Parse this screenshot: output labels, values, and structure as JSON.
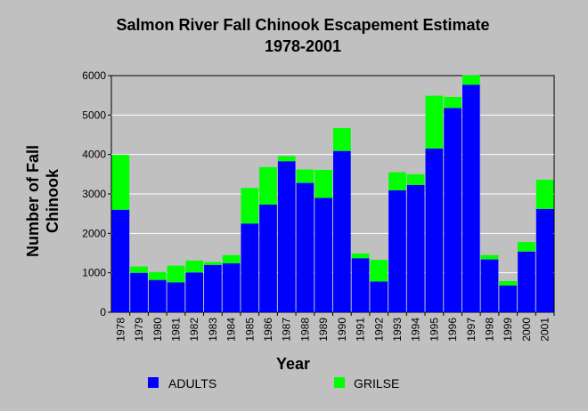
{
  "chart_data": {
    "type": "bar",
    "stacked": true,
    "title_line1": "Salmon River Fall Chinook Escapement Estimate",
    "title_line2": "1978-2001",
    "xlabel": "Year",
    "ylabel_line1": "Number of Fall",
    "ylabel_line2": "Chinook",
    "ylim": [
      0,
      6000
    ],
    "yticks": [
      0,
      1000,
      2000,
      3000,
      4000,
      5000,
      6000
    ],
    "grid": "horizontal",
    "legend_position": "bottom",
    "categories": [
      "1978",
      "1979",
      "1980",
      "1981",
      "1982",
      "1983",
      "1984",
      "1985",
      "1986",
      "1987",
      "1988",
      "1989",
      "1990",
      "1991",
      "1992",
      "1993",
      "1994",
      "1995",
      "1996",
      "1997",
      "1998",
      "1999",
      "2000",
      "2001"
    ],
    "series": [
      {
        "name": "ADULTS",
        "color": "#0000ff",
        "values": [
          2600,
          1000,
          820,
          760,
          1010,
          1200,
          1240,
          2250,
          2730,
          3830,
          3280,
          2900,
          4090,
          1370,
          780,
          3090,
          3230,
          4150,
          5180,
          5770,
          1340,
          680,
          1540,
          2620
        ]
      },
      {
        "name": "GRILSE",
        "color": "#00ff00",
        "values": [
          1390,
          160,
          200,
          420,
          300,
          70,
          210,
          900,
          950,
          130,
          340,
          710,
          580,
          120,
          550,
          460,
          270,
          1340,
          280,
          240,
          110,
          110,
          240,
          740
        ]
      }
    ]
  }
}
